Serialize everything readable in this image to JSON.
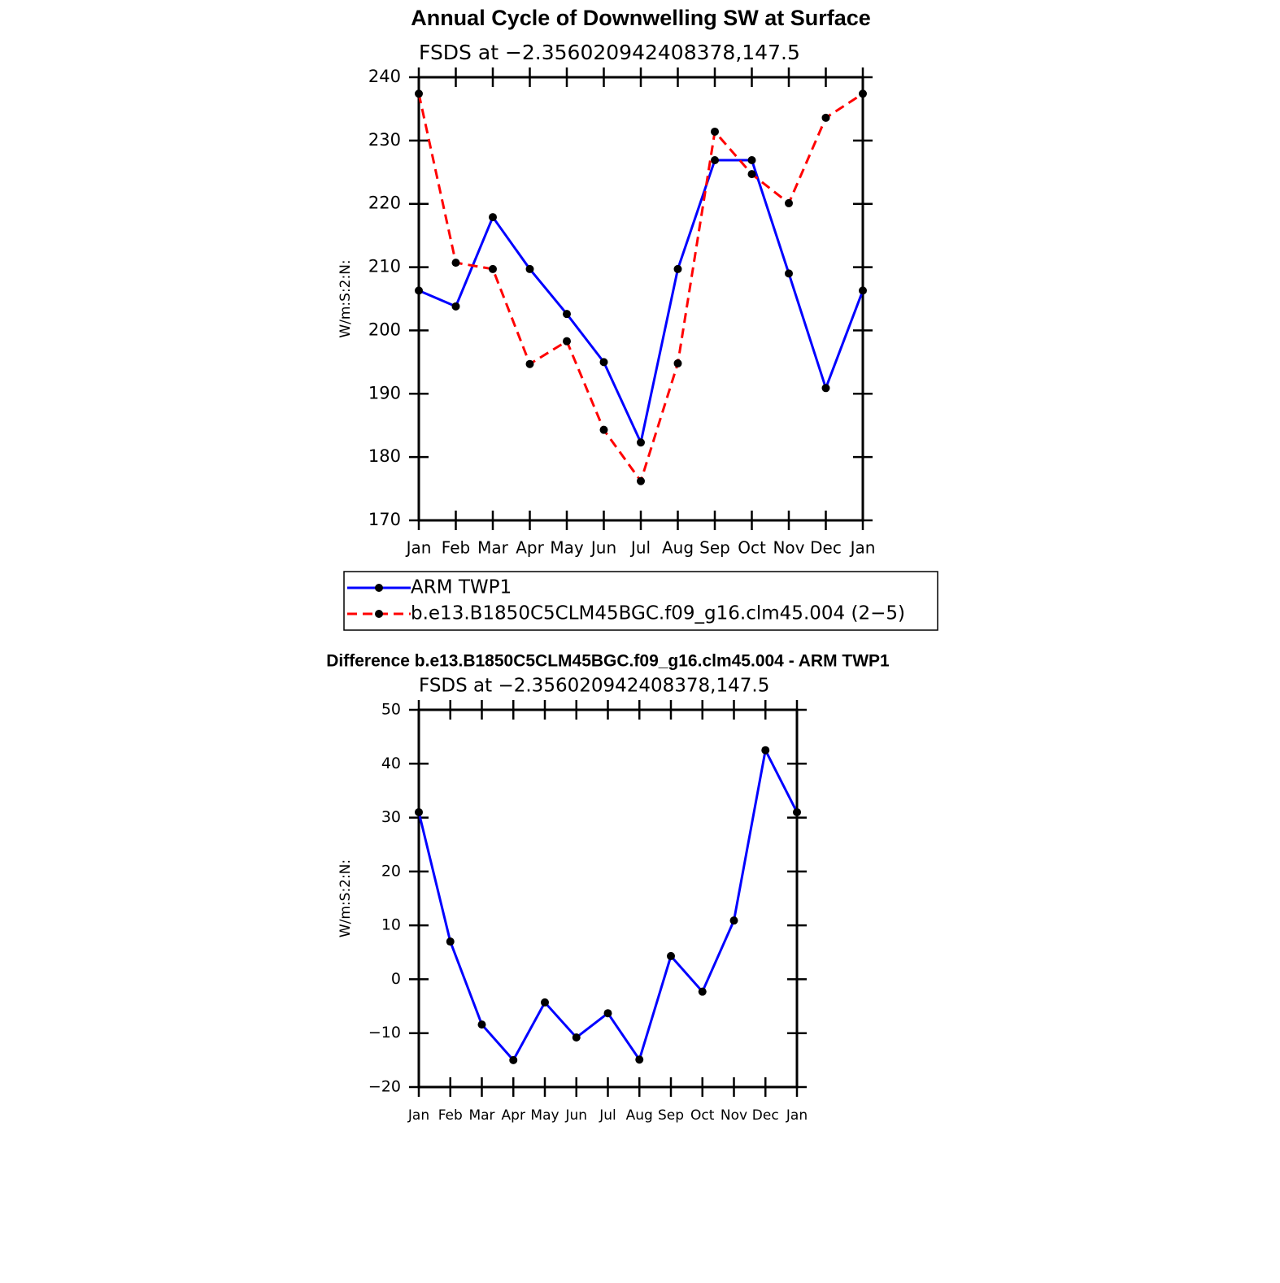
{
  "chart_data": [
    {
      "type": "line",
      "title": "Annual Cycle of Downwelling SW at Surface",
      "subtitle": "FSDS at −2.356020942408378,147.5",
      "ylabel": "W/m:S:2:N:",
      "categories": [
        "Jan",
        "Feb",
        "Mar",
        "Apr",
        "May",
        "Jun",
        "Jul",
        "Aug",
        "Sep",
        "Oct",
        "Nov",
        "Dec",
        "Jan"
      ],
      "series": [
        {
          "name": "ARM TWP1",
          "color": "#0000ff",
          "linestyle": "solid",
          "values": [
            206.3,
            203.8,
            217.9,
            209.7,
            202.6,
            195.0,
            182.3,
            209.7,
            226.9,
            226.9,
            209.0,
            190.9,
            206.3
          ]
        },
        {
          "name": "b.e13.B1850C5CLM45BGC.f09_g16.clm45.004 (2−5)",
          "color": "#ff0000",
          "linestyle": "dashed",
          "values": [
            237.4,
            210.7,
            209.7,
            194.7,
            198.3,
            184.3,
            176.2,
            194.8,
            231.4,
            224.7,
            220.1,
            233.6,
            237.4
          ]
        }
      ],
      "ylim": [
        170,
        240
      ],
      "yticks": [
        170,
        180,
        190,
        200,
        210,
        220,
        230,
        240
      ],
      "legend": "below"
    },
    {
      "type": "line",
      "title": "Difference b.e13.B1850C5CLM45BGC.f09_g16.clm45.004 - ARM TWP1",
      "subtitle": "FSDS at −2.356020942408378,147.5",
      "ylabel": "W/m:S:2:N:",
      "categories": [
        "Jan",
        "Feb",
        "Mar",
        "Apr",
        "May",
        "Jun",
        "Jul",
        "Aug",
        "Sep",
        "Oct",
        "Nov",
        "Dec",
        "Jan"
      ],
      "series": [
        {
          "color": "#0000ff",
          "linestyle": "solid",
          "values": [
            31.0,
            7.0,
            -8.4,
            -15.0,
            -4.3,
            -10.8,
            -6.3,
            -14.9,
            4.3,
            -2.3,
            10.9,
            42.5,
            31.0
          ]
        }
      ],
      "ylim": [
        -20,
        50
      ],
      "yticks": [
        {
          "value": -20,
          "label": "−20"
        },
        {
          "value": -10,
          "label": "−10"
        },
        0,
        10,
        20,
        30,
        40,
        50
      ]
    }
  ]
}
